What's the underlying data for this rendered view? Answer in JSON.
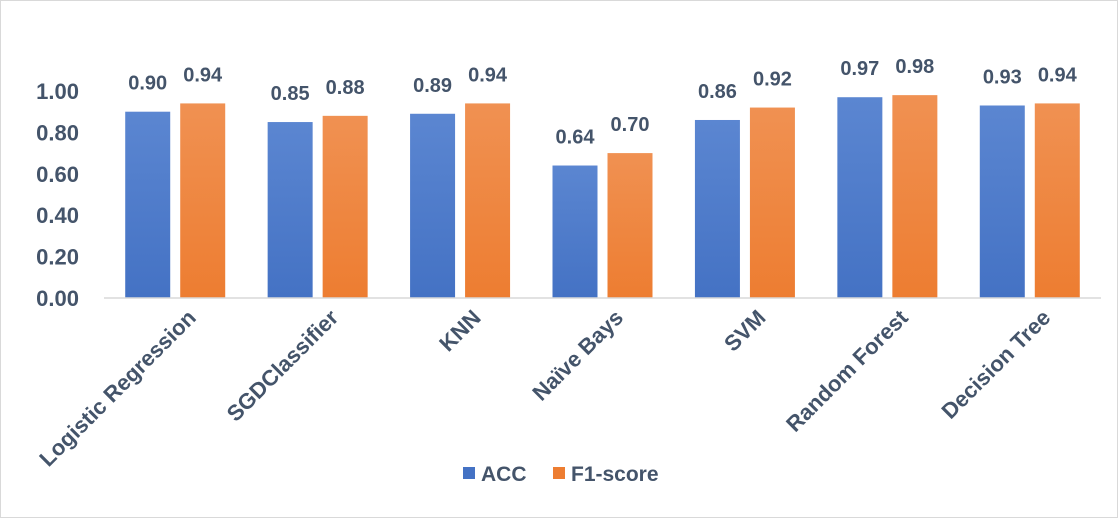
{
  "chart_data": {
    "type": "bar",
    "title": "",
    "xlabel": "",
    "ylabel": "",
    "categories": [
      "Logistic Regression",
      "SGDClassifier",
      "KNN",
      "Naïve Bays",
      "SVM",
      "Random Forest",
      "Decision Tree"
    ],
    "series": [
      {
        "name": "ACC",
        "color": "#4472c4",
        "values": [
          0.9,
          0.85,
          0.89,
          0.64,
          0.86,
          0.97,
          0.93
        ],
        "labels": [
          "0.90",
          "0.85",
          "0.89",
          "0.64",
          "0.86",
          "0.97",
          "0.93"
        ]
      },
      {
        "name": "F1-score",
        "color": "#ed7d31",
        "values": [
          0.94,
          0.88,
          0.94,
          0.7,
          0.92,
          0.98,
          0.94
        ],
        "labels": [
          "0.94",
          "0.88",
          "0.94",
          "0.70",
          "0.92",
          "0.98",
          "0.94"
        ]
      }
    ],
    "ylim": [
      0,
      1.0
    ],
    "yticks": [
      0.0,
      0.2,
      0.4,
      0.6,
      0.8,
      1.0
    ],
    "ytick_labels": [
      "0.00",
      "0.20",
      "0.40",
      "0.60",
      "0.80",
      "1.00"
    ],
    "grid": false,
    "legend_position": "bottom",
    "axis_color": "#d9d9d9",
    "text_color": "#44546a"
  }
}
